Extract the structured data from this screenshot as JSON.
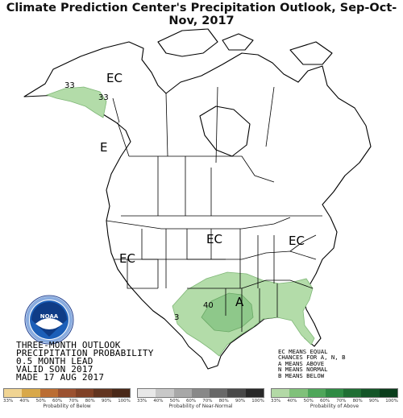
{
  "title": "Climate Prediction Center's Precipitation Outlook, Sep-Oct-Nov, 2017",
  "map_labels": {
    "ec_alaska": "EC",
    "c33_a": "33",
    "c33_b": "33",
    "ec_bc": "E",
    "ec_central": "EC",
    "ec_east": "EC",
    "ec_west": "EC",
    "c40": "40",
    "a_south": "A",
    "c33_tx": "3"
  },
  "caption": {
    "line1": "THREE-MONTH OUTLOOK",
    "line2": "PRECIPITATION PROBABILITY",
    "line3": "0.5 MONTH LEAD",
    "line4": "VALID SON 2017",
    "line5": "MADE 17 AUG 2017"
  },
  "key": {
    "line1": "EC MEANS EQUAL",
    "line2": "CHANCES FOR A, N, B",
    "line3": "A MEANS ABOVE",
    "line4": "N MEANS NORMAL",
    "line5": "B MEANS BELOW"
  },
  "logo_text": "NOAA",
  "legend": {
    "below": {
      "label": "Probability of Below",
      "ticks": [
        "33%",
        "40%",
        "50%",
        "60%",
        "70%",
        "80%",
        "90%",
        "100%"
      ],
      "colors": [
        "#f0d493",
        "#d8a84a",
        "#bb6d33",
        "#9b5130",
        "#804126",
        "#62341f",
        "#4a2818"
      ]
    },
    "normal": {
      "label": "Probability of Near-Normal",
      "ticks": [
        "33%",
        "40%",
        "50%",
        "60%",
        "70%",
        "80%",
        "90%",
        "100%"
      ],
      "colors": [
        "#e8e8e8",
        "#c8c8c8",
        "#a8a8a8",
        "#888888",
        "#686868",
        "#484848",
        "#282828"
      ]
    },
    "above": {
      "label": "Probability of Above",
      "ticks": [
        "33%",
        "40%",
        "50%",
        "60%",
        "70%",
        "80%",
        "90%",
        "100%"
      ],
      "colors": [
        "#b3d9a6",
        "#80c17a",
        "#4ea65a",
        "#2f8b44",
        "#1f6e33",
        "#135527",
        "#0a3d1b"
      ]
    }
  },
  "colors": {
    "above_33": "#b3dca9",
    "above_40": "#8ec88a",
    "outline": "#000000"
  }
}
